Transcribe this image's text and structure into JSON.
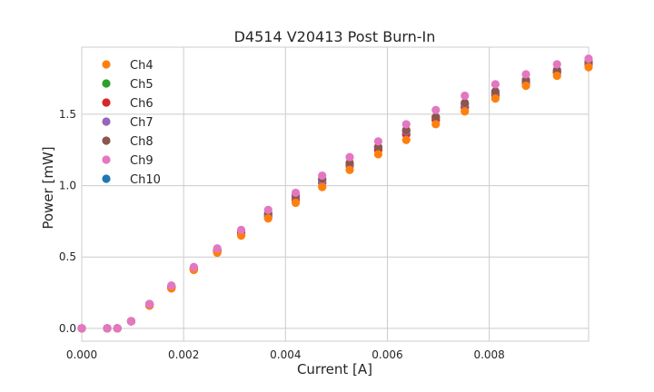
{
  "chart_data": {
    "type": "scatter",
    "title": "D4514 V20413 Post Burn-In",
    "xlabel": "Current [A]",
    "ylabel": "Power [mW]",
    "xlim": [
      0.0,
      0.00995
    ],
    "ylim": [
      -0.09,
      1.97
    ],
    "x_ticks": [
      "0.000",
      "0.002",
      "0.004",
      "0.006",
      "0.008"
    ],
    "y_ticks": [
      "0.0",
      "0.5",
      "1.0",
      "1.5"
    ],
    "grid": true,
    "legend_position": "top-left",
    "x": [
      0.0,
      0.0005,
      0.0007,
      0.00097,
      0.00133,
      0.00176,
      0.0022,
      0.00266,
      0.00313,
      0.00366,
      0.0042,
      0.00472,
      0.00526,
      0.00582,
      0.00637,
      0.00695,
      0.00752,
      0.00812,
      0.00872,
      0.00933,
      0.00995
    ],
    "series": [
      {
        "name": "Ch4",
        "color": "#ff7f0e",
        "values": [
          0.0,
          0.0,
          0.0,
          0.05,
          0.16,
          0.28,
          0.41,
          0.53,
          0.65,
          0.77,
          0.88,
          0.99,
          1.11,
          1.22,
          1.32,
          1.43,
          1.52,
          1.61,
          1.7,
          1.77,
          1.83
        ]
      },
      {
        "name": "Ch5",
        "color": "#2ca02c",
        "values": [
          0.0,
          0.0,
          0.0,
          0.05,
          0.16,
          0.29,
          0.42,
          0.54,
          0.67,
          0.79,
          0.91,
          1.02,
          1.14,
          1.25,
          1.36,
          1.46,
          1.55,
          1.63,
          1.72,
          1.79,
          1.85
        ]
      },
      {
        "name": "Ch6",
        "color": "#d62728",
        "values": [
          0.0,
          0.0,
          0.0,
          0.05,
          0.16,
          0.28,
          0.41,
          0.54,
          0.66,
          0.78,
          0.9,
          1.02,
          1.14,
          1.25,
          1.36,
          1.46,
          1.55,
          1.64,
          1.72,
          1.79,
          1.85
        ]
      },
      {
        "name": "Ch7",
        "color": "#9467bd",
        "values": [
          0.0,
          0.0,
          0.0,
          0.05,
          0.17,
          0.29,
          0.42,
          0.55,
          0.68,
          0.8,
          0.92,
          1.03,
          1.15,
          1.27,
          1.38,
          1.48,
          1.57,
          1.65,
          1.73,
          1.8,
          1.86
        ]
      },
      {
        "name": "Ch8",
        "color": "#8c564b",
        "values": [
          0.0,
          0.0,
          0.0,
          0.05,
          0.17,
          0.29,
          0.42,
          0.55,
          0.68,
          0.81,
          0.93,
          1.05,
          1.16,
          1.27,
          1.39,
          1.48,
          1.58,
          1.66,
          1.74,
          1.81,
          1.87
        ]
      },
      {
        "name": "Ch9",
        "color": "#e377c2",
        "values": [
          0.0,
          0.0,
          0.0,
          0.05,
          0.17,
          0.3,
          0.43,
          0.56,
          0.69,
          0.83,
          0.95,
          1.07,
          1.2,
          1.31,
          1.43,
          1.53,
          1.63,
          1.71,
          1.78,
          1.85,
          1.89
        ]
      },
      {
        "name": "Ch10",
        "color": "#1f77b4",
        "values": [
          0.0,
          0.0,
          0.0,
          0.05,
          0.17,
          0.29,
          0.42,
          0.55,
          0.67,
          0.8,
          0.92,
          1.04,
          1.15,
          1.27,
          1.38,
          1.48,
          1.57,
          1.65,
          1.73,
          1.8,
          1.86
        ]
      }
    ]
  }
}
